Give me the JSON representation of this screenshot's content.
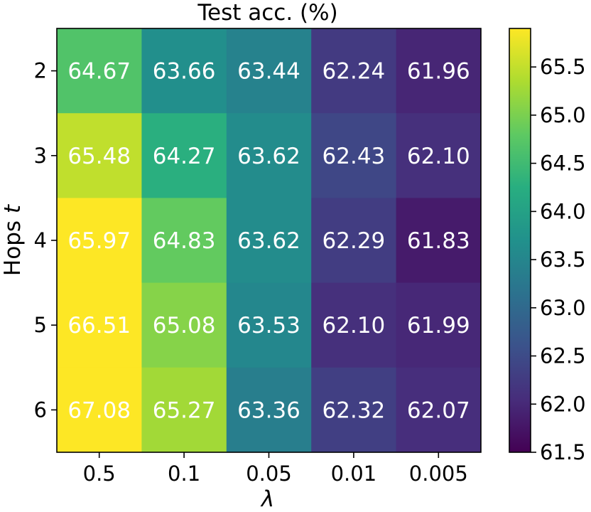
{
  "chart_data": {
    "type": "heatmap",
    "title": "Test acc. (%)",
    "xlabel": "λ",
    "ylabel_text": "Hops",
    "ylabel_var": "t",
    "x_categories": [
      "0.5",
      "0.1",
      "0.05",
      "0.01",
      "0.005"
    ],
    "y_categories": [
      "2",
      "3",
      "4",
      "5",
      "6"
    ],
    "values": [
      [
        64.67,
        63.66,
        63.44,
        62.24,
        61.96
      ],
      [
        65.48,
        64.27,
        63.62,
        62.43,
        62.1
      ],
      [
        65.97,
        64.83,
        63.62,
        62.29,
        61.83
      ],
      [
        66.51,
        65.08,
        63.53,
        62.1,
        61.99
      ],
      [
        67.08,
        65.27,
        63.36,
        62.32,
        62.07
      ]
    ],
    "value_labels": [
      [
        "64.67",
        "63.66",
        "63.44",
        "62.24",
        "61.96"
      ],
      [
        "65.48",
        "64.27",
        "63.62",
        "62.43",
        "62.10"
      ],
      [
        "65.97",
        "64.83",
        "63.62",
        "62.29",
        "61.83"
      ],
      [
        "66.51",
        "65.08",
        "63.53",
        "62.10",
        "61.99"
      ],
      [
        "67.08",
        "65.27",
        "63.36",
        "62.32",
        "62.07"
      ]
    ],
    "colormap": "viridis",
    "color_range": [
      61.5,
      65.9
    ],
    "colorbar_ticks": [
      "61.5",
      "62.0",
      "62.5",
      "63.0",
      "63.5",
      "64.0",
      "64.5",
      "65.0",
      "65.5"
    ],
    "grid": false
  }
}
